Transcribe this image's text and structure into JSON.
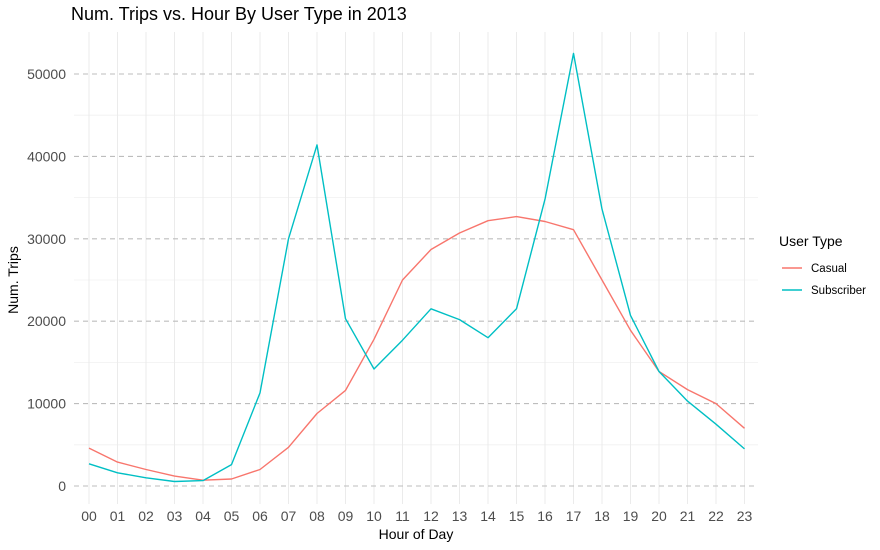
{
  "chart_data": {
    "type": "line",
    "title": "Num. Trips vs. Hour By User Type in 2013",
    "xlabel": "Hour of Day",
    "ylabel": "Num. Trips",
    "categories": [
      "00",
      "01",
      "02",
      "03",
      "04",
      "05",
      "06",
      "07",
      "08",
      "09",
      "10",
      "11",
      "12",
      "13",
      "14",
      "15",
      "16",
      "17",
      "18",
      "19",
      "20",
      "21",
      "22",
      "23"
    ],
    "yticks": [
      0,
      10000,
      20000,
      30000,
      40000,
      50000
    ],
    "ytick_labels": [
      "0",
      "10000",
      "20000",
      "30000",
      "40000",
      "50000"
    ],
    "ylim": [
      -2000,
      55000
    ],
    "grid": true,
    "legend": {
      "title": "User Type",
      "position": "right"
    },
    "series": [
      {
        "name": "Casual",
        "color": "#F8766D",
        "values": [
          4600,
          2900,
          2000,
          1200,
          700,
          850,
          2000,
          4700,
          8800,
          11600,
          17800,
          25000,
          28700,
          30700,
          32200,
          32700,
          32100,
          31100,
          25000,
          18900,
          13900,
          11700,
          10000,
          7000
        ]
      },
      {
        "name": "Subscriber",
        "color": "#00BFC4",
        "values": [
          2700,
          1600,
          1000,
          550,
          650,
          2600,
          11300,
          30000,
          41400,
          20300,
          14200,
          17700,
          21500,
          20200,
          18000,
          21500,
          34800,
          52500,
          33600,
          20700,
          13900,
          10300,
          7500,
          4500
        ]
      }
    ]
  }
}
